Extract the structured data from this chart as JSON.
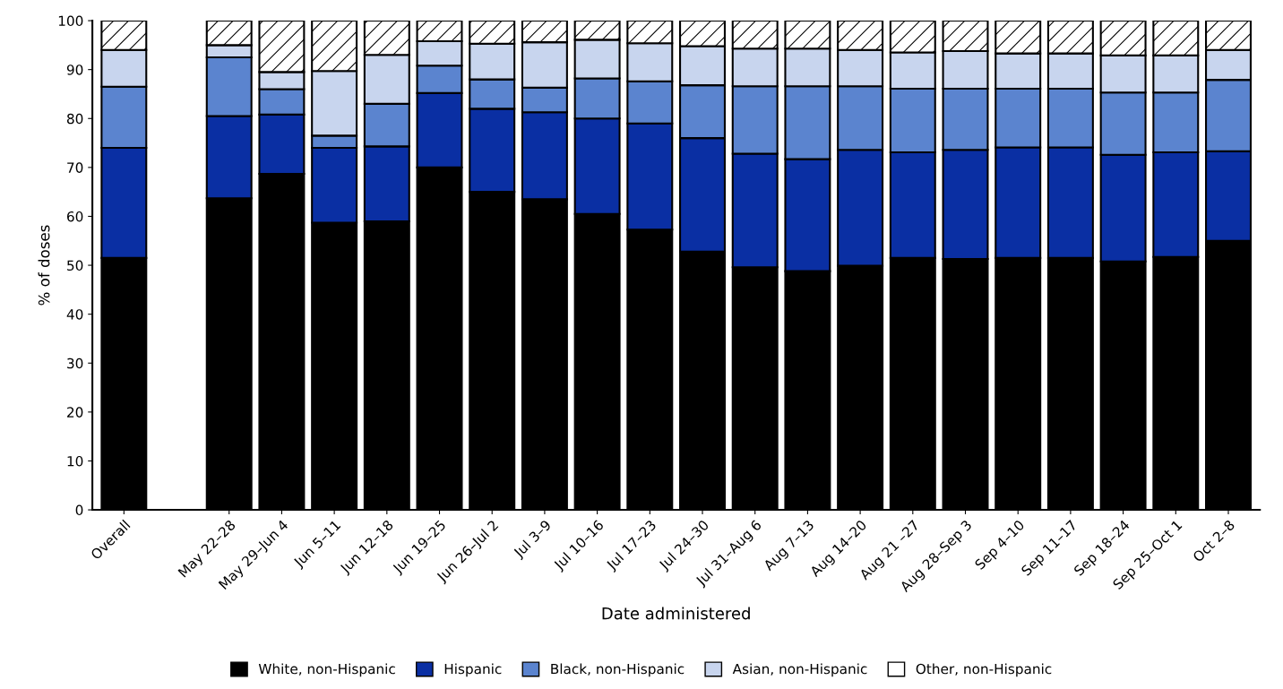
{
  "chart_data": {
    "type": "bar",
    "stacked": true,
    "xlabel": "Date administered",
    "ylabel": "% of doses",
    "categories": [
      "Overall",
      null,
      "May 22–28",
      "May 29–Jun 4",
      "Jun 5–11",
      "Jun 12–18",
      "Jun 19–25",
      "Jun 26–Jul 2",
      "Jul 3–9",
      "Jul 10–16",
      "Jul 17–23",
      "Jul 24–30",
      "Jul 31–Aug 6",
      "Aug 7–13",
      "Aug 14–20",
      "Aug 21 –27",
      "Aug 28–Sep 3",
      "Sep 4–10",
      "Sep 11–17",
      "Sep 18–24",
      "Sep 25–Oct 1",
      "Oct 2–8"
    ],
    "series": [
      {
        "name": "White, non-Hispanic",
        "color": "#000000",
        "values": [
          51.5,
          null,
          63.7,
          68.7,
          58.7,
          59.0,
          70.0,
          65.0,
          63.5,
          60.5,
          57.3,
          52.8,
          49.6,
          48.8,
          49.9,
          51.5,
          51.3,
          51.5,
          51.5,
          50.8,
          51.7,
          55.0
        ]
      },
      {
        "name": "Hispanic",
        "color": "#0a2fa3",
        "values": [
          22.5,
          null,
          16.8,
          12.1,
          15.3,
          15.3,
          15.2,
          17.0,
          17.8,
          19.5,
          21.7,
          23.2,
          23.2,
          22.9,
          23.7,
          21.6,
          22.3,
          22.6,
          22.6,
          21.8,
          21.4,
          18.3
        ]
      },
      {
        "name": "Black, non-Hispanic",
        "color": "#5b84cf",
        "values": [
          12.5,
          null,
          12.0,
          5.2,
          2.5,
          8.7,
          5.6,
          6.0,
          5.0,
          8.2,
          8.6,
          10.8,
          13.8,
          14.9,
          13.0,
          13.0,
          12.5,
          12.0,
          12.0,
          12.7,
          12.2,
          14.6
        ]
      },
      {
        "name": "Asian, non-Hispanic",
        "color": "#c8d5ee",
        "values": [
          7.5,
          null,
          2.5,
          3.5,
          13.2,
          10.0,
          5.0,
          7.3,
          9.3,
          7.9,
          7.8,
          8.0,
          7.7,
          7.7,
          7.4,
          7.4,
          7.7,
          7.2,
          7.2,
          7.6,
          7.6,
          6.1
        ]
      },
      {
        "name": "Other, non-Hispanic",
        "color": "#ffffff",
        "values": [
          6.0,
          null,
          5.0,
          10.5,
          10.3,
          7.0,
          4.2,
          4.7,
          4.4,
          3.9,
          4.6,
          5.2,
          5.7,
          5.7,
          6.0,
          6.5,
          6.2,
          6.7,
          6.7,
          7.1,
          7.1,
          6.0
        ]
      }
    ],
    "ylim": [
      0,
      100
    ],
    "yticks": [
      0,
      10,
      20,
      30,
      40,
      50,
      60,
      70,
      80,
      90,
      100
    ],
    "grid": false,
    "legend": "bottom"
  }
}
